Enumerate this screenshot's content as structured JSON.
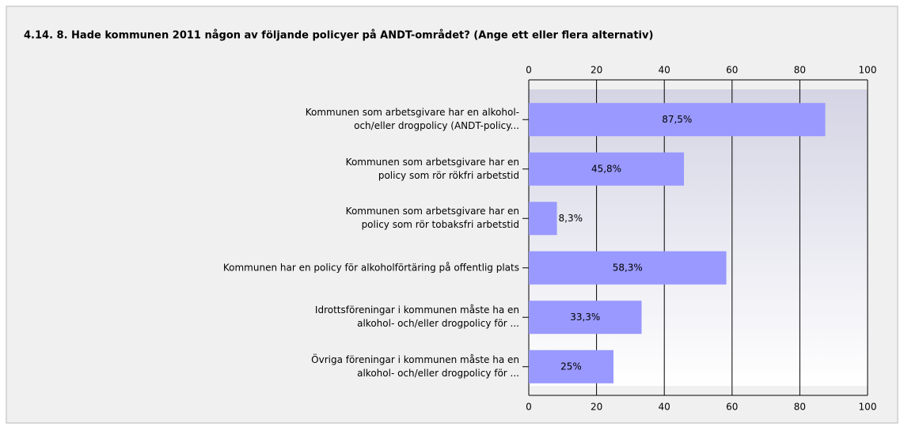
{
  "chart_data": {
    "type": "barh",
    "title": "4.14. 8. Hade kommunen 2011 någon av följande policyer på ANDT-området? (Ange ett eller flera alternativ)",
    "categories": [
      "Kommunen som arbetsgivare har en alkohol-\noch/eller drogpolicy (ANDT-policy...",
      "Kommunen som arbetsgivare har en\npolicy som rör rökfri arbetstid",
      "Kommunen som arbetsgivare har en\npolicy som rör tobaksfri arbetstid",
      "Kommunen har en policy för alkoholförtäring på offentlig plats",
      "Idrottsföreningar i kommunen måste ha en\nalkohol- och/eller drogpolicy för ...",
      "Övriga föreningar i kommunen måste ha en\nalkohol- och/eller drogpolicy för ..."
    ],
    "values": [
      87.5,
      45.8,
      8.3,
      58.3,
      33.3,
      25
    ],
    "value_labels": [
      "87,5%",
      "45,8%",
      "8,3%",
      "58,3%",
      "33,3%",
      "25%"
    ],
    "color": "#9999ff",
    "xlim": [
      0,
      100
    ],
    "xticks": [
      0,
      20,
      40,
      60,
      80,
      100
    ],
    "grid": true
  }
}
